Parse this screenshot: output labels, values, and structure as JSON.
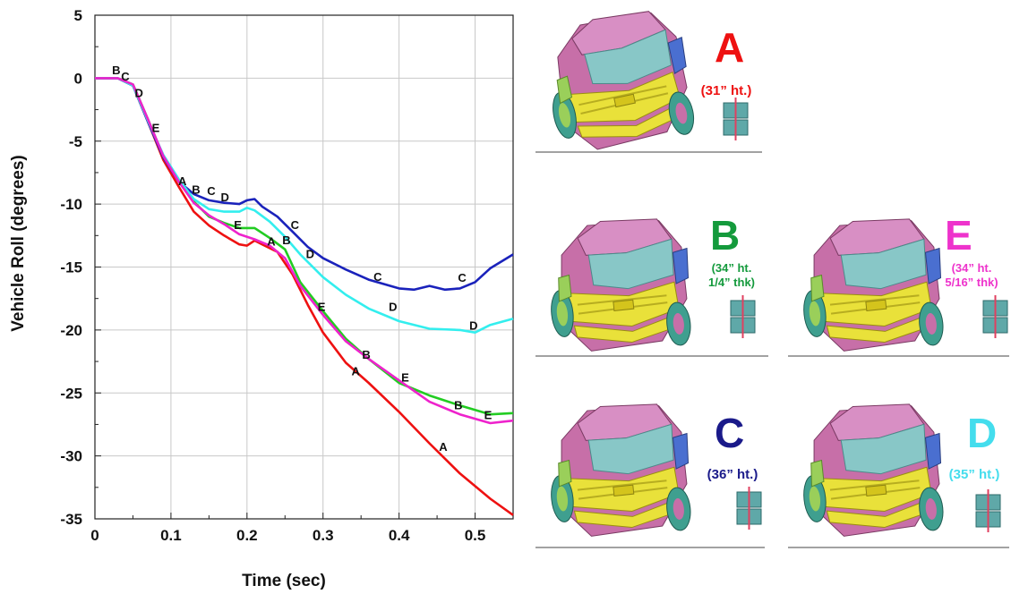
{
  "chart_data": {
    "type": "line",
    "xlabel": "Time (sec)",
    "ylabel": "Vehicle Roll (degrees)",
    "xlim": [
      0,
      0.55
    ],
    "ylim": [
      -35,
      5
    ],
    "xticks": [
      0,
      0.1,
      0.2,
      0.3,
      0.4,
      0.5
    ],
    "xtick_labels": [
      "0",
      "0.1",
      "0.2",
      "0.3",
      "0.4",
      "0.5"
    ],
    "yticks": [
      5,
      0,
      -5,
      -10,
      -15,
      -20,
      -25,
      -30,
      -35
    ],
    "ytick_labels": [
      "5",
      "0",
      "-5",
      "-10",
      "-15",
      "-20",
      "-25",
      "-30",
      "-35"
    ],
    "grid": true,
    "series": [
      {
        "name": "A",
        "color": "#ee1111",
        "x": [
          0,
          0.03,
          0.05,
          0.07,
          0.09,
          0.11,
          0.13,
          0.15,
          0.17,
          0.19,
          0.2,
          0.21,
          0.22,
          0.24,
          0.26,
          0.28,
          0.3,
          0.33,
          0.36,
          0.4,
          0.44,
          0.48,
          0.52,
          0.55
        ],
        "y": [
          0,
          0,
          -0.6,
          -3.5,
          -6.5,
          -8.6,
          -10.6,
          -11.7,
          -12.5,
          -13.2,
          -13.3,
          -12.9,
          -13.2,
          -13.8,
          -15.6,
          -18.0,
          -20.2,
          -22.6,
          -24.2,
          -26.5,
          -29.0,
          -31.4,
          -33.4,
          -34.7
        ],
        "labels": [
          {
            "x": 0.115,
            "y": -8.2
          },
          {
            "x": 0.232,
            "y": -13.0
          },
          {
            "x": 0.343,
            "y": -23.3
          },
          {
            "x": 0.458,
            "y": -29.3
          }
        ]
      },
      {
        "name": "B",
        "color": "#22cc22",
        "x": [
          0,
          0.03,
          0.05,
          0.07,
          0.09,
          0.11,
          0.13,
          0.15,
          0.17,
          0.19,
          0.21,
          0.23,
          0.25,
          0.27,
          0.3,
          0.33,
          0.36,
          0.4,
          0.44,
          0.48,
          0.52,
          0.55
        ],
        "y": [
          0,
          0,
          -0.5,
          -3.3,
          -6.2,
          -8.2,
          -9.8,
          -11.0,
          -11.5,
          -11.9,
          -11.9,
          -12.7,
          -13.6,
          -16.2,
          -18.5,
          -20.7,
          -22.3,
          -24.2,
          -25.2,
          -26.0,
          -26.7,
          -26.6
        ],
        "labels": [
          {
            "x": 0.028,
            "y": 0.6
          },
          {
            "x": 0.133,
            "y": -8.9
          },
          {
            "x": 0.252,
            "y": -12.9
          },
          {
            "x": 0.357,
            "y": -22.0
          },
          {
            "x": 0.478,
            "y": -26.0
          }
        ]
      },
      {
        "name": "C",
        "color": "#1a22bb",
        "x": [
          0,
          0.03,
          0.05,
          0.07,
          0.09,
          0.11,
          0.13,
          0.15,
          0.17,
          0.19,
          0.2,
          0.21,
          0.22,
          0.24,
          0.26,
          0.28,
          0.3,
          0.33,
          0.36,
          0.4,
          0.42,
          0.44,
          0.46,
          0.48,
          0.5,
          0.52,
          0.55
        ],
        "y": [
          0,
          0,
          -0.6,
          -3.5,
          -6.3,
          -8.2,
          -9.2,
          -9.7,
          -9.9,
          -10.0,
          -9.7,
          -9.6,
          -10.2,
          -11.0,
          -12.2,
          -13.4,
          -14.3,
          -15.2,
          -16.0,
          -16.7,
          -16.8,
          -16.5,
          -16.8,
          -16.7,
          -16.2,
          -15.1,
          -14.0
        ],
        "labels": [
          {
            "x": 0.04,
            "y": 0.1
          },
          {
            "x": 0.153,
            "y": -9.0
          },
          {
            "x": 0.263,
            "y": -11.7
          },
          {
            "x": 0.372,
            "y": -15.8
          },
          {
            "x": 0.483,
            "y": -15.9
          }
        ]
      },
      {
        "name": "D",
        "color": "#33eeee",
        "x": [
          0,
          0.03,
          0.05,
          0.07,
          0.09,
          0.11,
          0.13,
          0.15,
          0.17,
          0.19,
          0.2,
          0.21,
          0.23,
          0.25,
          0.27,
          0.3,
          0.33,
          0.36,
          0.4,
          0.44,
          0.48,
          0.5,
          0.52,
          0.55
        ],
        "y": [
          0,
          0,
          -0.6,
          -3.4,
          -6.1,
          -8.0,
          -9.6,
          -10.4,
          -10.6,
          -10.6,
          -10.3,
          -10.5,
          -11.4,
          -12.6,
          -14.0,
          -15.8,
          -17.2,
          -18.3,
          -19.3,
          -19.9,
          -20.0,
          -20.2,
          -19.6,
          -19.1
        ],
        "labels": [
          {
            "x": 0.058,
            "y": -1.2
          },
          {
            "x": 0.171,
            "y": -9.5
          },
          {
            "x": 0.283,
            "y": -14.0
          },
          {
            "x": 0.392,
            "y": -18.2
          },
          {
            "x": 0.498,
            "y": -19.7
          }
        ]
      },
      {
        "name": "E",
        "color": "#ee22cc",
        "x": [
          0,
          0.03,
          0.05,
          0.07,
          0.09,
          0.11,
          0.13,
          0.15,
          0.17,
          0.19,
          0.21,
          0.23,
          0.25,
          0.27,
          0.3,
          0.33,
          0.36,
          0.4,
          0.44,
          0.48,
          0.52,
          0.55
        ],
        "y": [
          0,
          0,
          -0.5,
          -3.3,
          -6.2,
          -8.2,
          -9.9,
          -10.9,
          -11.6,
          -12.4,
          -12.8,
          -13.3,
          -14.3,
          -16.5,
          -18.8,
          -20.9,
          -22.3,
          -24.0,
          -25.7,
          -26.7,
          -27.4,
          -27.2
        ],
        "labels": [
          {
            "x": 0.08,
            "y": -4.0
          },
          {
            "x": 0.188,
            "y": -11.7
          },
          {
            "x": 0.298,
            "y": -18.2
          },
          {
            "x": 0.408,
            "y": -23.8
          },
          {
            "x": 0.517,
            "y": -26.8
          }
        ]
      }
    ]
  },
  "panels": [
    {
      "letter": "A",
      "caption_lines": [
        "(31” ht.)"
      ],
      "color": "#ee1111"
    },
    {
      "letter": "B",
      "caption_lines": [
        "(34” ht.",
        "1/4” thk)"
      ],
      "color": "#149a3c"
    },
    {
      "letter": "E",
      "caption_lines": [
        "(34” ht.",
        "5/16” thk)"
      ],
      "color": "#ee33cc"
    },
    {
      "letter": "C",
      "caption_lines": [
        "(36” ht.)"
      ],
      "color": "#1a1a8a"
    },
    {
      "letter": "D",
      "caption_lines": [
        "(35” ht.)"
      ],
      "color": "#44dded"
    }
  ],
  "truck_colors": {
    "body": "#c76fa8",
    "cab": "#d88fc4",
    "glass": "#88c7c7",
    "grille": "#e9e13a",
    "wheel": "#3f9f8f",
    "accent": "#9acf5a"
  }
}
